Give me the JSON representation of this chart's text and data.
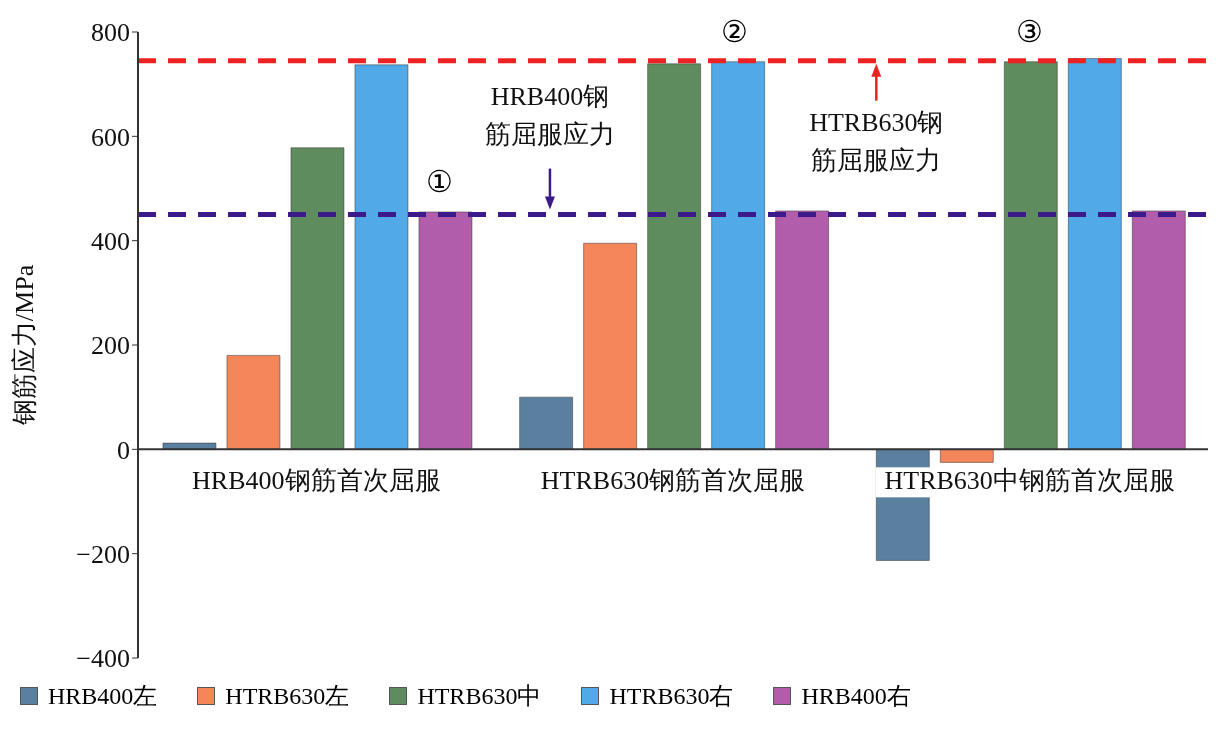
{
  "chart_data": {
    "type": "bar",
    "ylabel": "钢筋应力/MPa",
    "categories": [
      "HRB400钢筋首次屈服",
      "HTRB630钢筋首次屈服",
      "HTRB630中钢筋首次屈服"
    ],
    "series": [
      {
        "name": "HRB400左",
        "color": "#5a7f9f",
        "values": [
          12,
          100,
          -213
        ]
      },
      {
        "name": "HTRB630左",
        "color": "#f4875a",
        "values": [
          180,
          395,
          -25
        ]
      },
      {
        "name": "HTRB630中",
        "color": "#5e8c5e",
        "values": [
          578,
          739,
          743
        ]
      },
      {
        "name": "HTRB630右",
        "color": "#52a9e8",
        "values": [
          737,
          743,
          749
        ]
      },
      {
        "name": "HRB400右",
        "color": "#b25dab",
        "values": [
          455,
          457,
          457
        ]
      }
    ],
    "ylim": [
      -400,
      800
    ],
    "yticks": [
      -400,
      -200,
      0,
      200,
      400,
      600,
      800
    ],
    "ref_lines": [
      {
        "axis": "y",
        "value": 450,
        "label": "HRB400钢筋屈服应力",
        "color": "#3d1a8a",
        "line_style": "dashed"
      },
      {
        "axis": "y",
        "value": 745,
        "label": "HTRB630钢筋屈服应力",
        "color": "#ee2222",
        "line_style": "dashed"
      }
    ],
    "annotations": [
      "①",
      "②",
      "③"
    ],
    "legend": "bottom"
  }
}
